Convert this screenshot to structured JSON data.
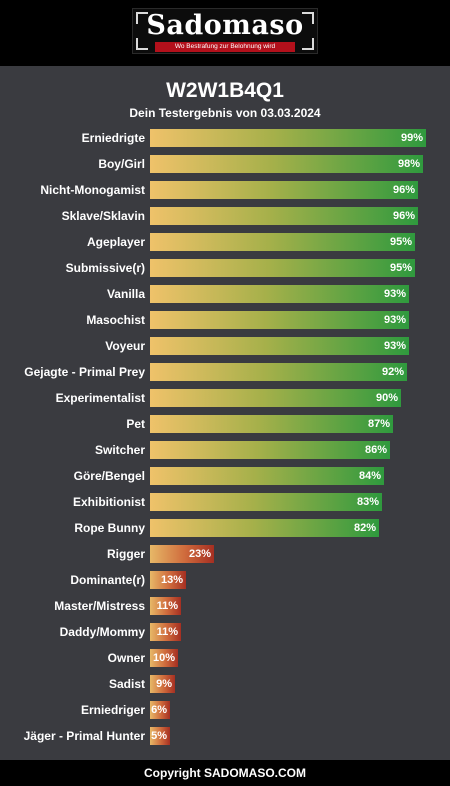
{
  "header": {
    "logo_text": "Sadomaso",
    "logo_tagline": "Wo Bestrafung zur Belohnung wird"
  },
  "result": {
    "title": "W2W1B4Q1",
    "subtitle": "Dein Testergebnis von 03.03.2024"
  },
  "chart_data": {
    "type": "bar",
    "orientation": "horizontal",
    "xlim": [
      0,
      100
    ],
    "categories": [
      "Erniedrigte",
      "Boy/Girl",
      "Nicht-Monogamist",
      "Sklave/Sklavin",
      "Ageplayer",
      "Submissive(r)",
      "Vanilla",
      "Masochist",
      "Voyeur",
      "Gejagte - Primal Prey",
      "Experimentalist",
      "Pet",
      "Switcher",
      "Göre/Bengel",
      "Exhibitionist",
      "Rope Bunny",
      "Rigger",
      "Dominante(r)",
      "Master/Mistress",
      "Daddy/Mommy",
      "Owner",
      "Sadist",
      "Erniedriger",
      "Jäger - Primal Hunter"
    ],
    "values": [
      99,
      98,
      96,
      96,
      95,
      95,
      93,
      93,
      93,
      92,
      90,
      87,
      86,
      84,
      83,
      82,
      23,
      13,
      11,
      11,
      10,
      9,
      6,
      5
    ],
    "value_labels": [
      "99%",
      "98%",
      "96%",
      "96%",
      "95%",
      "95%",
      "93%",
      "93%",
      "93%",
      "92%",
      "90%",
      "87%",
      "86%",
      "84%",
      "83%",
      "82%",
      "23%",
      "13%",
      "11%",
      "11%",
      "10%",
      "9%",
      "6%",
      "5%"
    ],
    "colors": {
      "high_start": "#efc26a",
      "high_end": "#2f9a3e",
      "low_start": "#e7b867",
      "low_end": "#a52f22"
    }
  },
  "footer": {
    "copyright": "Copyright SADOMASO.COM"
  }
}
